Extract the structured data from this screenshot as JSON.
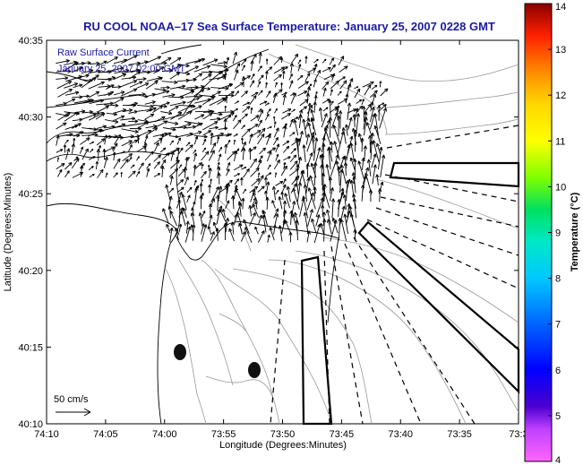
{
  "title": "RU COOL  NOAA–17  Sea Surface Temperature:  January 25, 2007 0228 GMT",
  "legend": {
    "line1": "Raw Surface Current",
    "line2": "January 25, 2007 02:00 GMT",
    "scale_label": "50 cm/s"
  },
  "x_axis": {
    "label": "Longitude (Degrees:Minutes)",
    "ticks": [
      "74:10",
      "74:05",
      "74:00",
      "73:55",
      "73:50",
      "73:45",
      "73:40",
      "73:35",
      "73:3"
    ]
  },
  "y_axis": {
    "label": "Latitude (Degrees:Minutes)",
    "ticks": [
      "40:35",
      "40:30",
      "40:25",
      "40:20",
      "40:15",
      "40:10"
    ]
  },
  "colorbar": {
    "label": "Temperature (°C)",
    "ticks": [
      "14",
      "13",
      "12",
      "11",
      "10",
      "9",
      "8",
      "7",
      "6",
      "5",
      "4"
    ],
    "colors": [
      "#8b0000",
      "#ff0000",
      "#ff8c00",
      "#ffd700",
      "#ffff00",
      "#7fff00",
      "#00e08a",
      "#00c8ff",
      "#0064ff",
      "#0000cd",
      "#ff66ff"
    ]
  }
}
